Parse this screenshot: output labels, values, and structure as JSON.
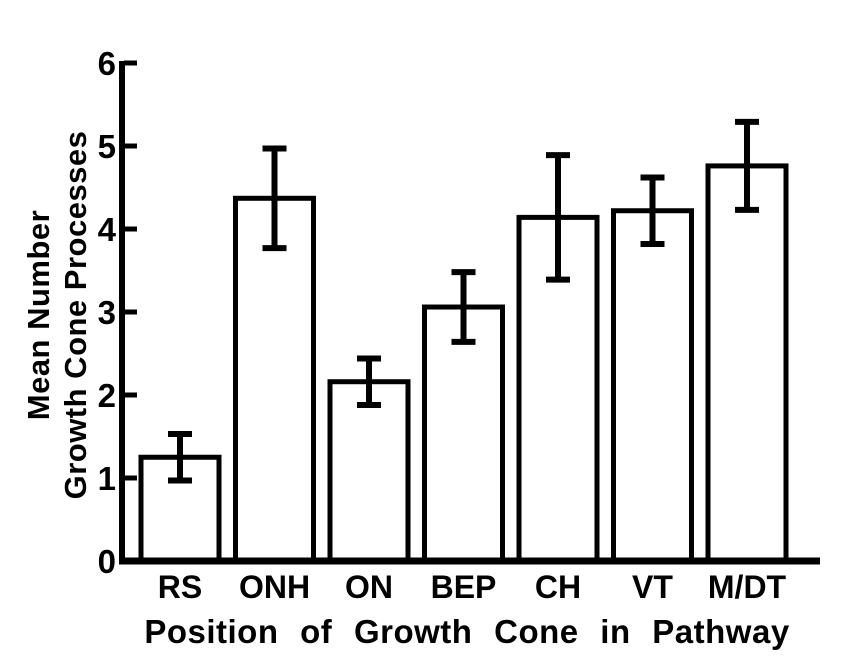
{
  "figure": {
    "background_color": "#ffffff",
    "ink_color": "#000000"
  },
  "chart_data": {
    "type": "bar",
    "title": "",
    "xlabel": "Position of Growth Cone in Pathway",
    "ylabel": "Mean Number Growth Cone Processes",
    "ylabel_lines": [
      "Mean Number",
      "Growth Cone Processes"
    ],
    "categories": [
      "RS",
      "ONH",
      "ON",
      "BEP",
      "CH",
      "VT",
      "M/DT"
    ],
    "values": [
      1.25,
      4.37,
      2.16,
      3.06,
      4.14,
      4.22,
      4.76
    ],
    "errors": [
      0.28,
      0.6,
      0.28,
      0.42,
      0.75,
      0.4,
      0.53
    ],
    "error_bars": true,
    "yticks": [
      0,
      1,
      2,
      3,
      4,
      5,
      6
    ],
    "ylim": [
      0,
      6
    ],
    "grid": false,
    "legend": null,
    "bar_fill": "#ffffff",
    "bar_stroke": "#000000"
  }
}
